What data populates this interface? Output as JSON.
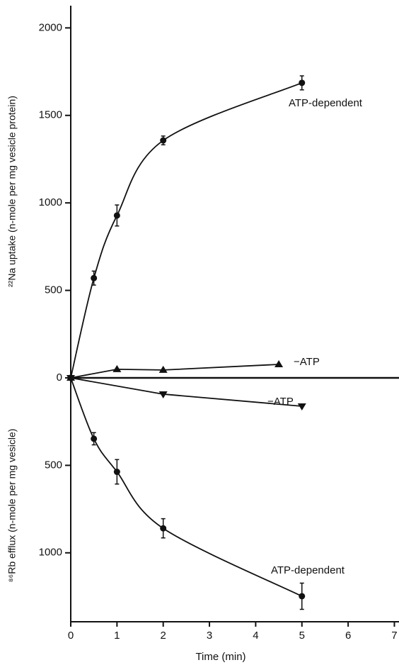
{
  "chart_data": [
    {
      "type": "line",
      "ylabel": "²²Na uptake (n-mole per mg vesicle protein)",
      "xlim": [
        0,
        7.1
      ],
      "ylim": [
        0,
        2127
      ],
      "yticks": [
        0,
        500,
        1000,
        1500,
        2000
      ],
      "series": [
        {
          "name": "ATP-dependent",
          "marker": "circle",
          "curve": "smooth",
          "color": "#111111",
          "x": [
            0,
            0.5,
            1,
            2,
            5
          ],
          "values": [
            0,
            570,
            928,
            1357,
            1686
          ],
          "errors": [
            0,
            40,
            60,
            25,
            40
          ]
        },
        {
          "name": "−ATP",
          "marker": "triangle-up",
          "curve": "straight",
          "color": "#111111",
          "x": [
            0,
            1,
            2,
            4.5
          ],
          "values": [
            0,
            49,
            45,
            77
          ]
        }
      ]
    },
    {
      "type": "line",
      "ylabel": "⁸⁶Rb efflux (n-mole per mg vesicle)",
      "xlabel": "Time (min)",
      "y_inverted": true,
      "xlim": [
        0,
        7.1
      ],
      "ylim": [
        0,
        1394
      ],
      "yticks": [
        500,
        1000
      ],
      "xticks": [
        0,
        1,
        2,
        3,
        4,
        5,
        6,
        7
      ],
      "series": [
        {
          "name": "−ATP",
          "marker": "triangle-down",
          "curve": "straight",
          "color": "#111111",
          "x": [
            0,
            2,
            5
          ],
          "values": [
            0,
            93,
            162
          ]
        },
        {
          "name": "ATP-dependent",
          "marker": "circle",
          "curve": "smooth",
          "color": "#111111",
          "x": [
            0,
            0.5,
            1,
            2,
            5
          ],
          "values": [
            0,
            348,
            537,
            860,
            1248
          ],
          "errors": [
            0,
            35,
            70,
            55,
            75
          ]
        }
      ]
    }
  ]
}
